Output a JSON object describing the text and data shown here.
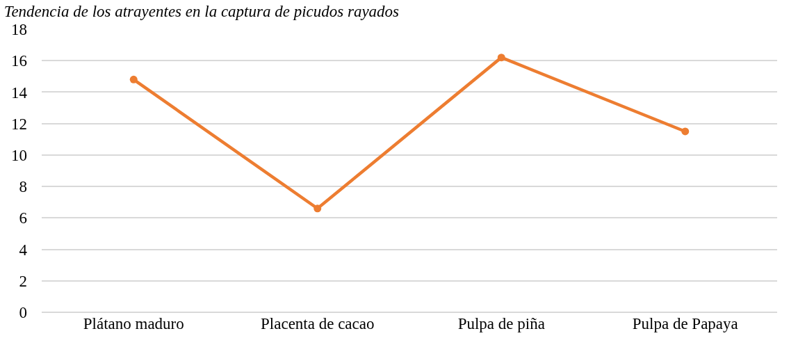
{
  "chart_data": {
    "type": "line",
    "title": "Tendencia de los atrayentes en la captura de picudos rayados",
    "categories": [
      "Plátano maduro",
      "Placenta de cacao",
      "Pulpa de piña",
      "Pulpa de Papaya"
    ],
    "series": [
      {
        "color": "#ed7d31",
        "values": [
          14.8,
          6.6,
          16.2,
          11.5
        ]
      }
    ],
    "ylim": [
      0,
      18
    ],
    "yticks": [
      0,
      2,
      4,
      6,
      8,
      10,
      12,
      14,
      16,
      18
    ],
    "grid": "y",
    "marker": "circle",
    "line_style": "solid"
  }
}
